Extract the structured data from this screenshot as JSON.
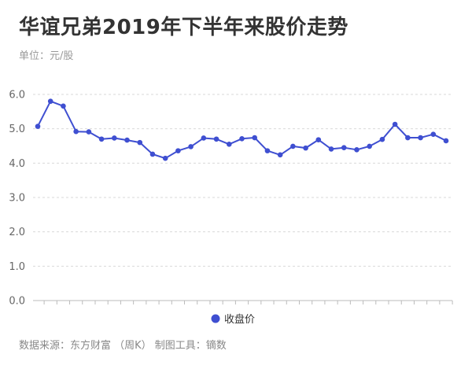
{
  "title": "华谊兄弟2019年下半年来股价走势",
  "subtitle": "单位：元/股",
  "source": "数据来源：东方财富 （周K） 制图工具：镝数",
  "colors": {
    "line": "#3f4fd1",
    "grid": "#d9d9d9",
    "axis": "#bbbbbb",
    "text": "#333333"
  },
  "chart_data": {
    "type": "line",
    "ylim": [
      0,
      6
    ],
    "yticks": [
      "0.0",
      "1.0",
      "2.0",
      "3.0",
      "4.0",
      "5.0",
      "6.0"
    ],
    "grid": "horizontal-dashed",
    "legend_position": "bottom",
    "series": [
      {
        "name": "收盘价",
        "values": [
          5.07,
          5.8,
          5.66,
          4.92,
          4.91,
          4.7,
          4.73,
          4.67,
          4.6,
          4.26,
          4.14,
          4.36,
          4.48,
          4.73,
          4.7,
          4.55,
          4.71,
          4.74,
          4.36,
          4.24,
          4.49,
          4.44,
          4.68,
          4.41,
          4.45,
          4.39,
          4.49,
          4.69,
          5.13,
          4.74,
          4.74,
          4.84,
          4.65
        ]
      }
    ]
  }
}
